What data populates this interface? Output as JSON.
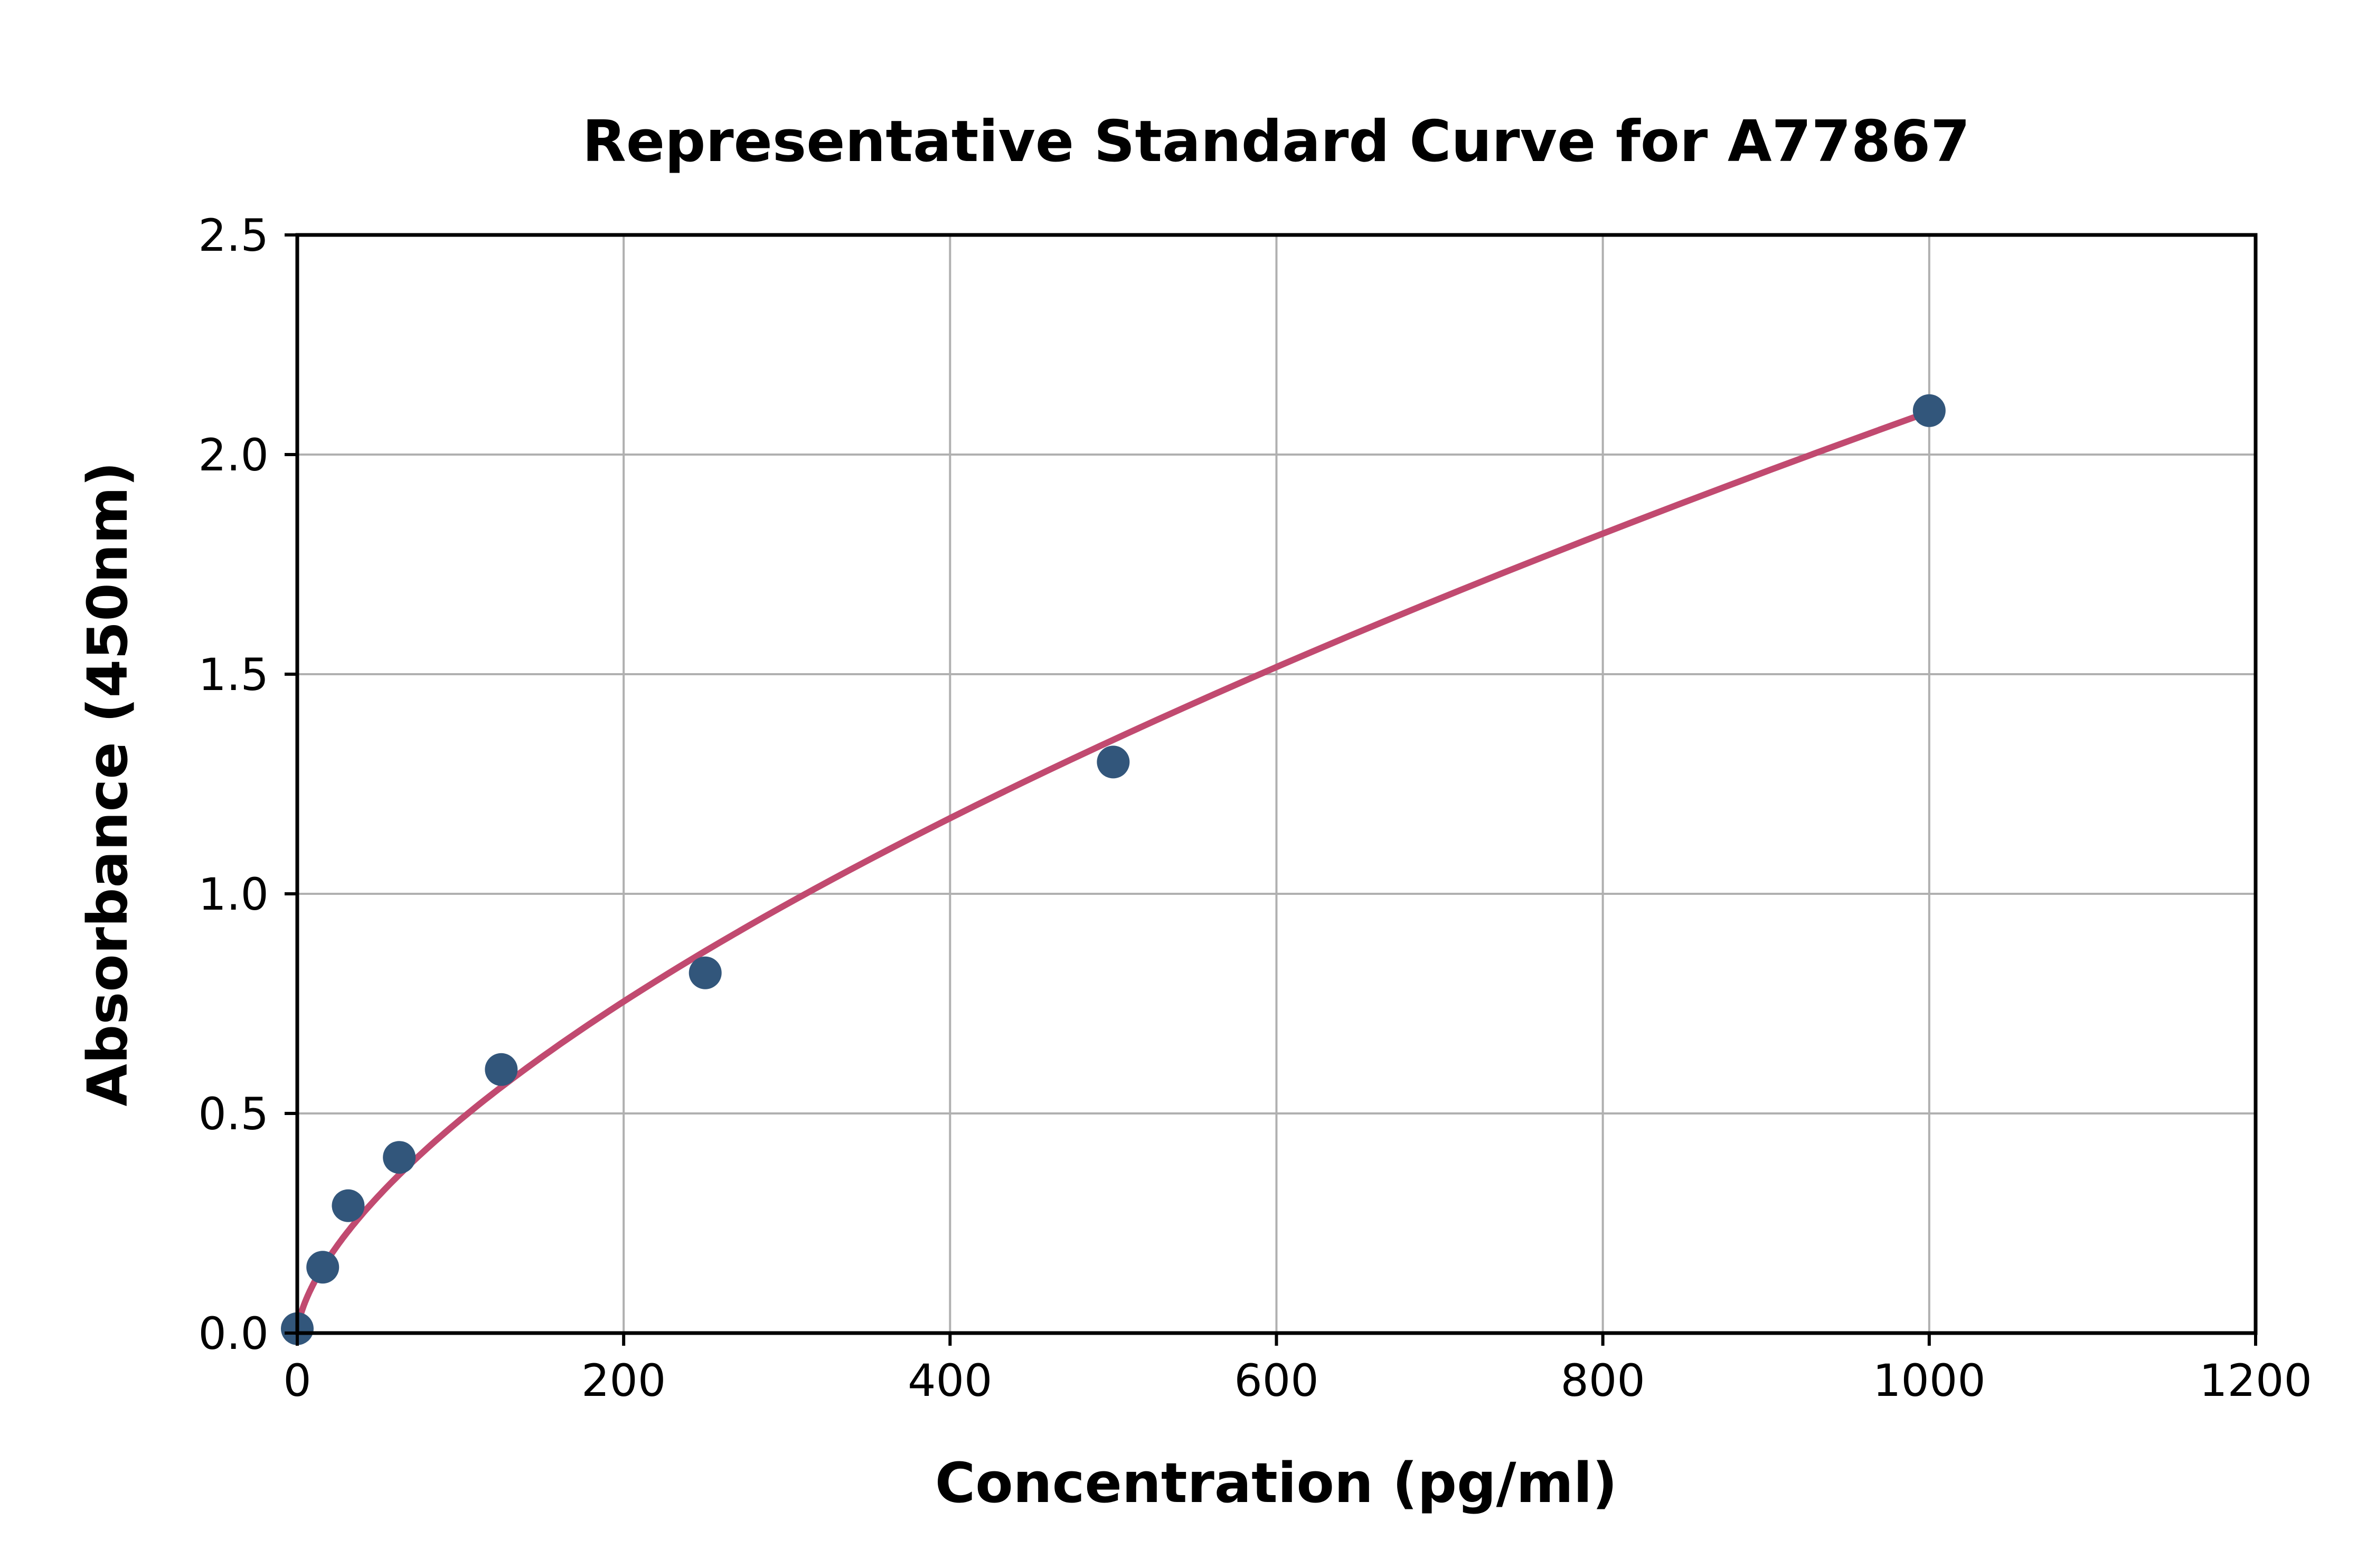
{
  "chart_data": {
    "type": "scatter",
    "title": "Representative Standard Curve for A77867",
    "xlabel": "Concentration (pg/ml)",
    "ylabel": "Absorbance (450nm)",
    "xlim": [
      0,
      1200
    ],
    "ylim": [
      0,
      2.5
    ],
    "xticks": [
      0,
      200,
      400,
      600,
      800,
      1000,
      1200
    ],
    "xtick_labels": [
      "0",
      "200",
      "400",
      "600",
      "800",
      "1000",
      "1200"
    ],
    "yticks": [
      0,
      0.5,
      1.0,
      1.5,
      2.0,
      2.5
    ],
    "ytick_labels": [
      "0.0",
      "0.5",
      "1.0",
      "1.5",
      "2.0",
      "2.5"
    ],
    "grid": true,
    "legend_position": "none",
    "series": [
      {
        "name": "standard-points",
        "type": "scatter",
        "color": "#32567b",
        "points": [
          {
            "x": 0,
            "y": 0.01
          },
          {
            "x": 15.6,
            "y": 0.15
          },
          {
            "x": 31.2,
            "y": 0.29
          },
          {
            "x": 62.5,
            "y": 0.4
          },
          {
            "x": 125,
            "y": 0.6
          },
          {
            "x": 250,
            "y": 0.82
          },
          {
            "x": 500,
            "y": 1.3
          },
          {
            "x": 1000,
            "y": 2.1
          }
        ]
      },
      {
        "name": "fitted-curve",
        "type": "line",
        "color": "#c14a70",
        "fit": {
          "model": "power",
          "a": 0.0261,
          "b": 0.635,
          "x_start": 0.3,
          "x_end": 1000
        }
      }
    ],
    "colors": {
      "grid": "#b0b0b0",
      "axis": "#000000",
      "text": "#000000",
      "background": "#ffffff"
    }
  }
}
